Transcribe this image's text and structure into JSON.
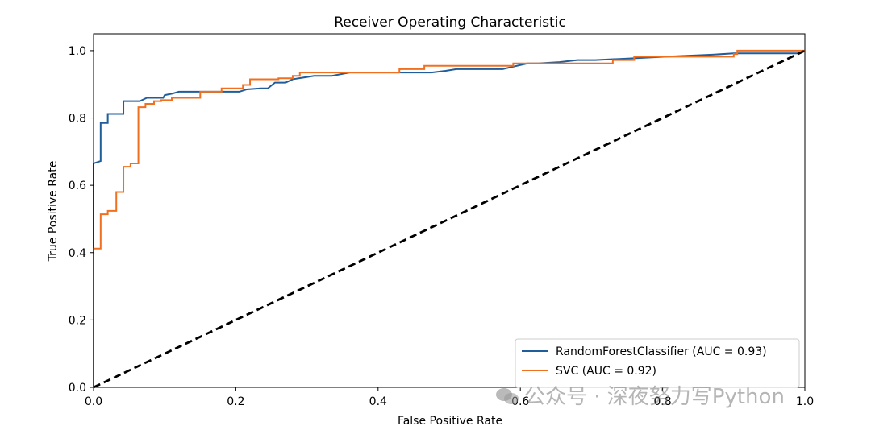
{
  "chart_data": {
    "type": "line",
    "title": "Receiver Operating Characteristic",
    "xlabel": "False Positive Rate",
    "ylabel": "True Positive Rate",
    "xlim": [
      0.0,
      1.0
    ],
    "ylim": [
      0.0,
      1.05
    ],
    "xticks": [
      "0.0",
      "0.2",
      "0.4",
      "0.6",
      "0.8",
      "1.0"
    ],
    "yticks": [
      "0.0",
      "0.2",
      "0.4",
      "0.6",
      "0.8",
      "1.0"
    ],
    "grid": false,
    "legend_position": "lower-right",
    "series": [
      {
        "name": "RandomForestClassifier (AUC = 0.93)",
        "color": "#1f5d9b",
        "x": [
          0,
          0,
          0.01,
          0.01,
          0.02,
          0.02,
          0.042,
          0.042,
          0.065,
          0.075,
          0.098,
          0.1,
          0.11,
          0.12,
          0.205,
          0.215,
          0.235,
          0.245,
          0.255,
          0.27,
          0.28,
          0.31,
          0.335,
          0.36,
          0.475,
          0.495,
          0.51,
          0.575,
          0.595,
          0.61,
          0.625,
          0.655,
          0.68,
          0.705,
          0.745,
          0.805,
          0.87,
          0.9,
          0.99,
          1.0
        ],
        "y": [
          0,
          0.665,
          0.672,
          0.785,
          0.785,
          0.812,
          0.812,
          0.85,
          0.85,
          0.86,
          0.86,
          0.868,
          0.872,
          0.878,
          0.878,
          0.885,
          0.888,
          0.888,
          0.905,
          0.905,
          0.915,
          0.925,
          0.925,
          0.935,
          0.935,
          0.94,
          0.945,
          0.945,
          0.955,
          0.962,
          0.962,
          0.966,
          0.972,
          0.972,
          0.976,
          0.982,
          0.988,
          0.992,
          0.992,
          1.0
        ]
      },
      {
        "name": "SVC (AUC = 0.92)",
        "color": "#f07020",
        "x": [
          0,
          0,
          0.01,
          0.01,
          0.02,
          0.02,
          0.032,
          0.032,
          0.042,
          0.042,
          0.052,
          0.052,
          0.063,
          0.063,
          0.073,
          0.073,
          0.085,
          0.085,
          0.095,
          0.095,
          0.11,
          0.11,
          0.15,
          0.15,
          0.18,
          0.18,
          0.21,
          0.21,
          0.22,
          0.22,
          0.26,
          0.26,
          0.28,
          0.28,
          0.29,
          0.29,
          0.43,
          0.43,
          0.465,
          0.465,
          0.59,
          0.59,
          0.73,
          0.73,
          0.76,
          0.76,
          0.9,
          0.9,
          0.905,
          0.905,
          1.0
        ],
        "y": [
          0,
          0.412,
          0.412,
          0.514,
          0.514,
          0.524,
          0.524,
          0.58,
          0.58,
          0.655,
          0.655,
          0.665,
          0.665,
          0.832,
          0.832,
          0.842,
          0.842,
          0.85,
          0.85,
          0.853,
          0.853,
          0.86,
          0.86,
          0.878,
          0.878,
          0.888,
          0.888,
          0.898,
          0.898,
          0.915,
          0.915,
          0.918,
          0.918,
          0.925,
          0.925,
          0.935,
          0.935,
          0.945,
          0.945,
          0.955,
          0.955,
          0.962,
          0.962,
          0.972,
          0.972,
          0.982,
          0.982,
          0.99,
          0.99,
          1.0,
          1.0
        ]
      },
      {
        "name": "",
        "color": "#000000",
        "style": "dashed",
        "x": [
          0,
          1
        ],
        "y": [
          0,
          1
        ]
      }
    ]
  },
  "watermark": {
    "text": "公众号 · 深夜努力写Python",
    "icon": "wechat-icon"
  }
}
